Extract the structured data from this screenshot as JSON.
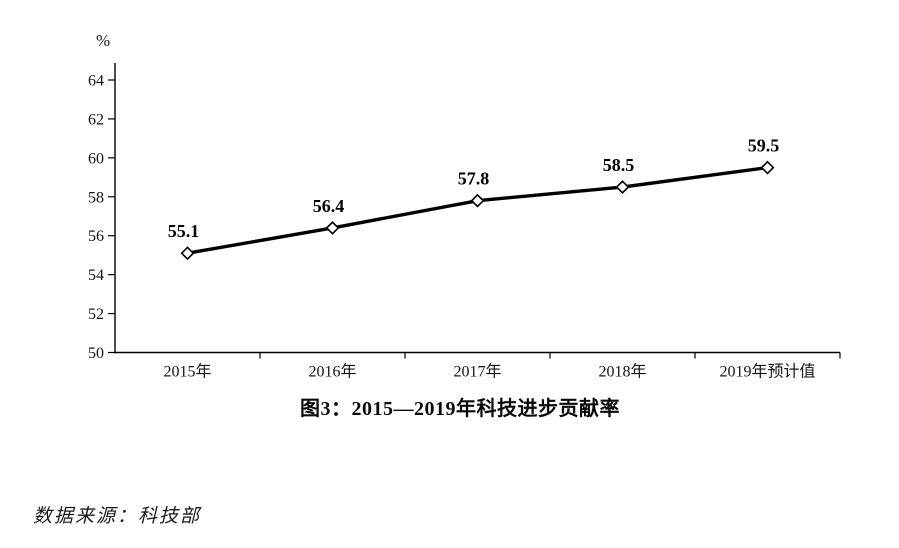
{
  "figure": {
    "y_axis_unit": "%",
    "title": "图3：2015—2019年科技进步贡献率",
    "source": "数据来源：科技部"
  },
  "chart_data": {
    "type": "line",
    "title": "图3：2015—2019年科技进步贡献率",
    "categories": [
      "2015年",
      "2016年",
      "2017年",
      "2018年",
      "2019年预计值"
    ],
    "values": [
      55.1,
      56.4,
      57.8,
      58.5,
      59.5
    ],
    "data_labels": [
      "55.1",
      "56.4",
      "57.8",
      "58.5",
      "59.5"
    ],
    "ylabel": "%",
    "xlabel": "",
    "ylim": [
      50,
      64
    ],
    "yticks": [
      50,
      52,
      54,
      56,
      58,
      60,
      62,
      64
    ],
    "grid": false,
    "legend": "none",
    "line_color": "#000000",
    "marker": "diamond-open",
    "marker_fill": "#ffffff",
    "marker_stroke": "#000000",
    "background": "#ffffff",
    "source": "数据来源：科技部"
  }
}
